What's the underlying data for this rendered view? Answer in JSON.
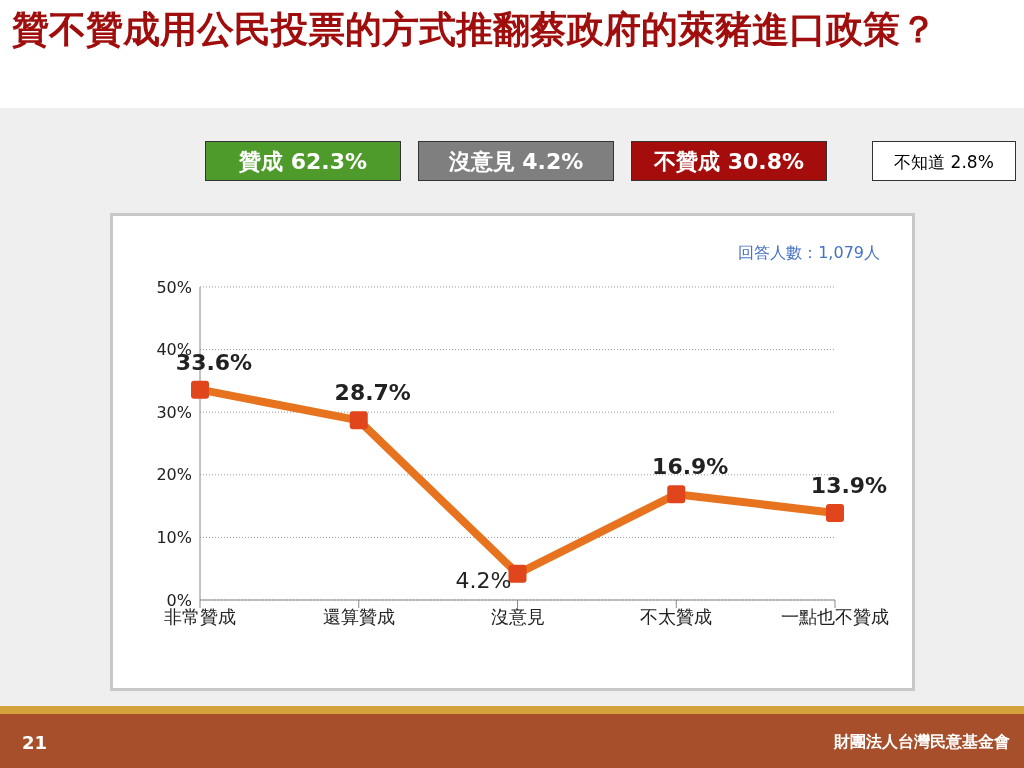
{
  "chart_data": {
    "type": "line",
    "title": "贊不贊成用公民投票的方式推翻蔡政府的萊豬進口政策？",
    "categories": [
      "非常贊成",
      "還算贊成",
      "沒意見",
      "不太贊成",
      "一點也不贊成"
    ],
    "values": [
      33.6,
      28.7,
      4.2,
      16.9,
      13.9
    ],
    "color": "#e8731e",
    "ylim": [
      0,
      50
    ],
    "yticks": [
      {
        "value": 0,
        "label": "0%"
      },
      {
        "value": 10,
        "label": "10%"
      },
      {
        "value": 20,
        "label": "20%"
      },
      {
        "value": 30,
        "label": "30%"
      },
      {
        "value": 40,
        "label": "40%"
      },
      {
        "value": 50,
        "label": "50%"
      }
    ],
    "grid": "y",
    "marker": "square",
    "line_style": "solid",
    "value_labels": [
      "33.6%",
      "28.7%",
      "4.2%",
      "16.9%",
      "13.9%"
    ],
    "annotations": [
      "贊成 62.3%",
      "沒意見 4.2%",
      "不贊成 30.8%",
      "不知道 2.8%",
      "回答人數：1,079人",
      "21",
      "財團法人台灣民意基金會"
    ]
  }
}
